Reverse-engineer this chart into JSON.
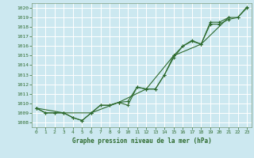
{
  "title": "Graphe pression niveau de la mer (hPa)",
  "background_color": "#cce8f0",
  "plot_bg_color": "#cce8f0",
  "grid_color": "#ffffff",
  "line_color": "#2d6a2d",
  "xlim": [
    -0.5,
    23.5
  ],
  "ylim": [
    1007.5,
    1020.5
  ],
  "yticks": [
    1008,
    1009,
    1010,
    1011,
    1012,
    1013,
    1014,
    1015,
    1016,
    1017,
    1018,
    1019,
    1020
  ],
  "xticks": [
    0,
    1,
    2,
    3,
    4,
    5,
    6,
    7,
    8,
    9,
    10,
    11,
    12,
    13,
    14,
    15,
    16,
    17,
    18,
    19,
    20,
    21,
    22,
    23
  ],
  "series": [
    {
      "x": [
        0,
        1,
        2,
        3,
        4,
        5,
        6,
        7,
        8,
        9,
        10,
        11,
        12,
        13,
        14,
        15,
        16,
        17,
        18,
        19,
        20,
        21,
        22,
        23
      ],
      "y": [
        1009.5,
        1009.0,
        1009.0,
        1009.0,
        1008.5,
        1008.2,
        1009.0,
        1009.8,
        1009.8,
        1010.1,
        1010.2,
        1011.7,
        1011.5,
        1011.5,
        1013.0,
        1015.0,
        1016.0,
        1016.6,
        1016.2,
        1018.5,
        1018.5,
        1019.0,
        1019.0,
        1020.1
      ]
    },
    {
      "x": [
        0,
        1,
        2,
        3,
        4,
        5,
        6,
        7,
        8,
        9,
        10,
        11,
        12,
        13,
        14,
        15,
        16,
        17,
        18,
        19,
        20,
        21,
        22,
        23
      ],
      "y": [
        1009.5,
        1009.0,
        1009.0,
        1009.0,
        1008.5,
        1008.2,
        1009.0,
        1009.8,
        1009.8,
        1010.1,
        1009.8,
        1011.7,
        1011.5,
        1011.5,
        1013.0,
        1014.8,
        1016.0,
        1016.5,
        1016.2,
        1018.3,
        1018.3,
        1018.8,
        1019.0,
        1020.0
      ]
    },
    {
      "x": [
        0,
        3,
        6,
        9,
        12,
        15,
        18,
        21
      ],
      "y": [
        1009.5,
        1009.0,
        1009.0,
        1010.1,
        1011.5,
        1015.0,
        1016.2,
        1019.0
      ]
    }
  ],
  "ylabel_fontsize": 4.5,
  "xlabel_fontsize": 5.5,
  "tick_fontsize": 4.5
}
